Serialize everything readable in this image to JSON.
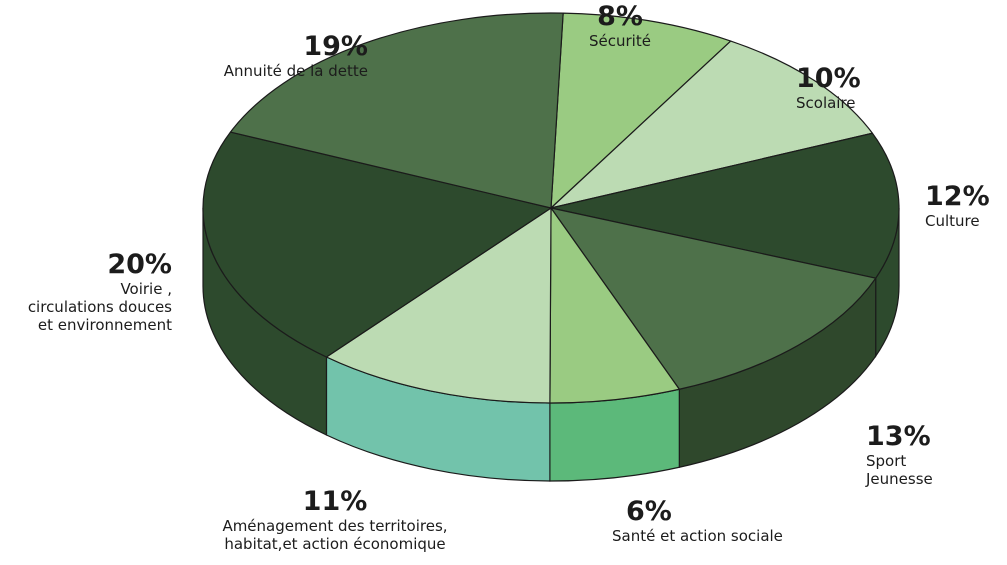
{
  "chart_data": {
    "type": "pie",
    "style": "3d-tilted",
    "slices": [
      {
        "label": "Sécurité",
        "value": 8,
        "value_label": "8%",
        "color": "#9acb82"
      },
      {
        "label": "Scolaire",
        "value": 10,
        "value_label": "10%",
        "color": "#bcdbb3"
      },
      {
        "label": "Culture",
        "value": 12,
        "value_label": "12%",
        "color": "#2d4a2d"
      },
      {
        "label": "Sport Jeunesse",
        "label_lines": [
          "Sport",
          "Jeunesse"
        ],
        "value": 13,
        "value_label": "13%",
        "color": "#4e714a"
      },
      {
        "label": "Santé et action sociale",
        "value": 6,
        "value_label": "6%",
        "color": "#9acb82"
      },
      {
        "label": "Aménagement des territoires, habitat,et action économique",
        "label_lines": [
          "Aménagement des territoires,",
          "habitat,et action économique"
        ],
        "value": 11,
        "value_label": "11%",
        "color": "#bcdbb3"
      },
      {
        "label": "Voirie , circulations douces et environnement",
        "label_lines": [
          "Voirie ,",
          "circulations douces",
          "et environnement"
        ],
        "value": 20,
        "value_label": "20%",
        "color": "#2d4a2d"
      },
      {
        "label": "Annuité de la dette",
        "value": 19,
        "value_label": "19%",
        "color": "#4e714a"
      }
    ]
  }
}
